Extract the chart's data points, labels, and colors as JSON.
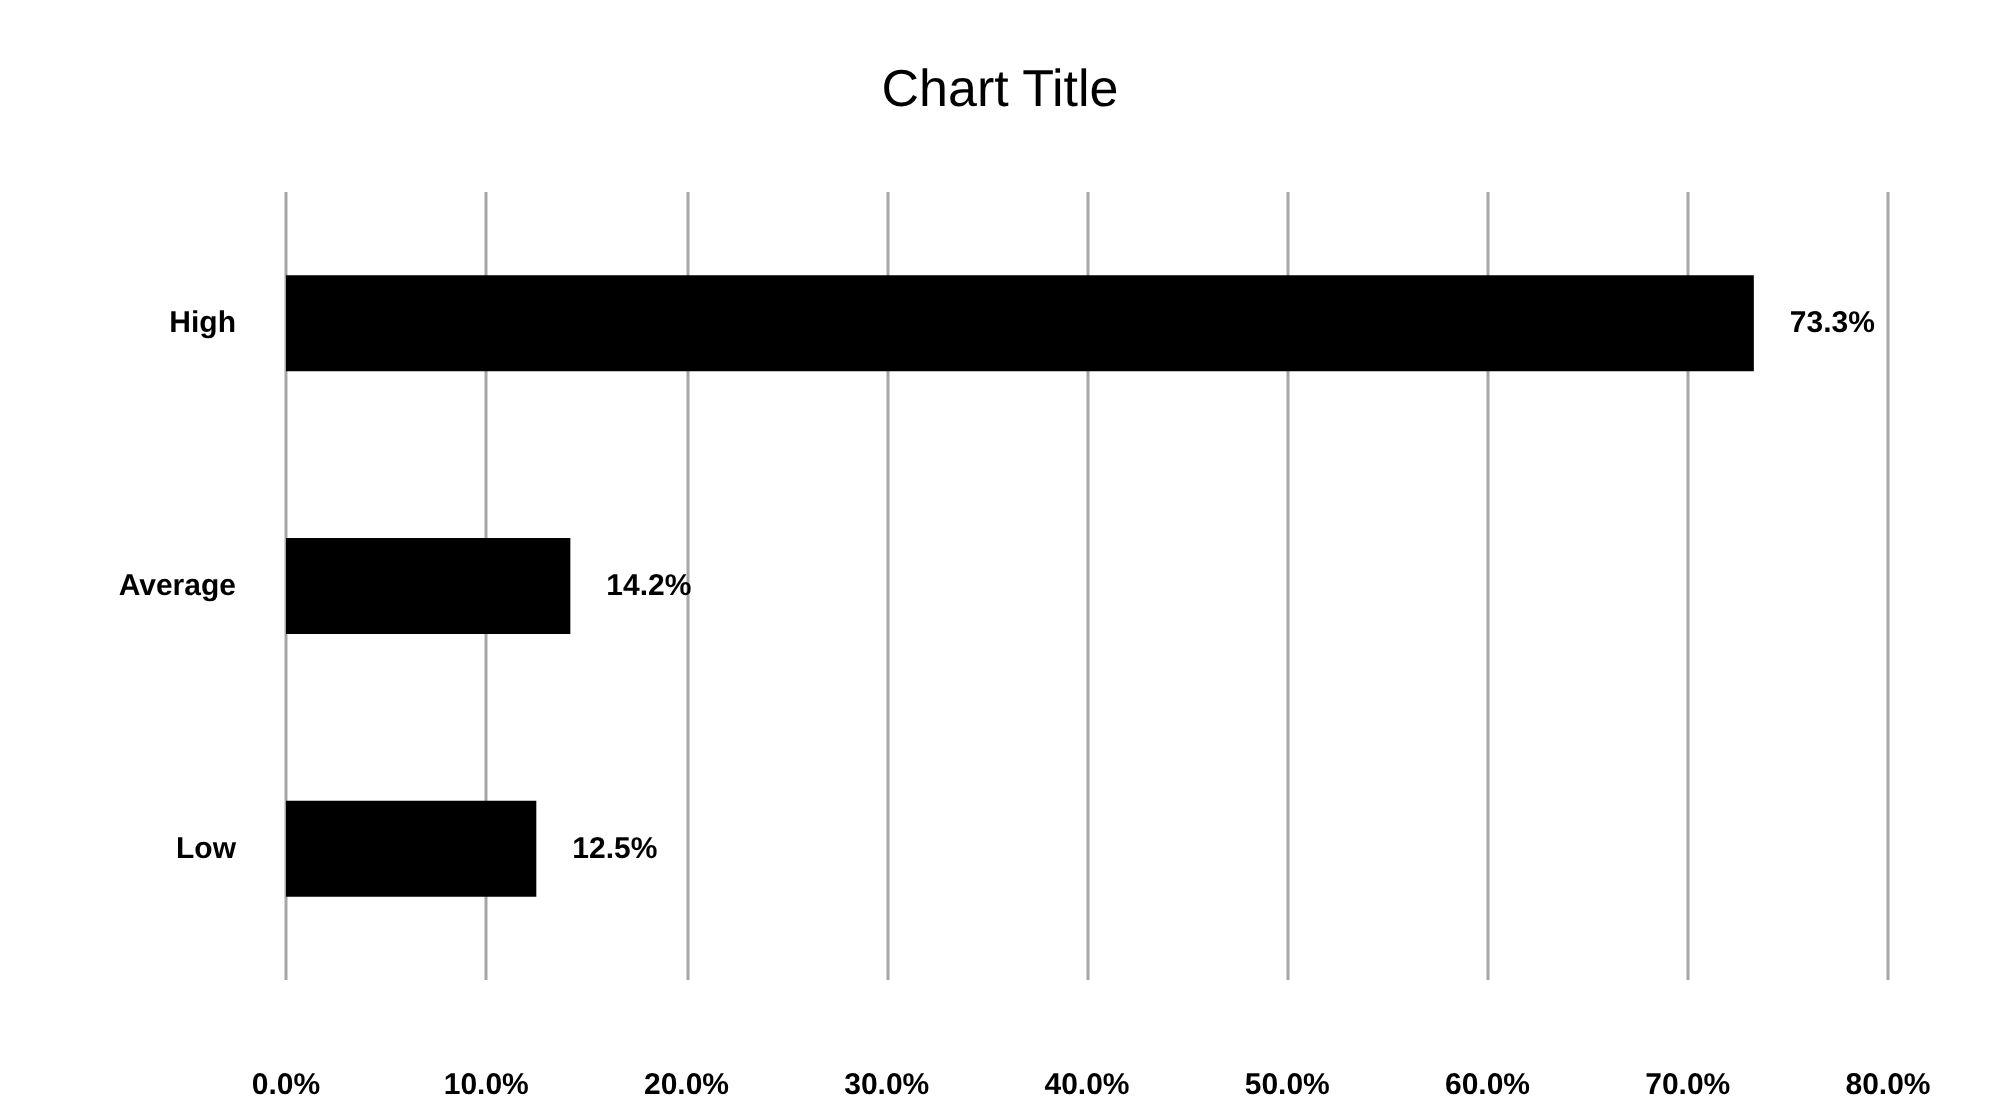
{
  "chart_data": {
    "type": "bar",
    "title": "Chart Title",
    "orientation": "horizontal",
    "categories": [
      "High",
      "Average",
      "Low"
    ],
    "values": [
      73.3,
      14.2,
      12.5
    ],
    "value_labels": [
      "73.3%",
      "14.2%",
      "12.5%"
    ],
    "color": "#000000",
    "xlim": [
      0,
      80
    ],
    "xticks": [
      {
        "value": 0,
        "label": "0.0%"
      },
      {
        "value": 10,
        "label": "10.0%"
      },
      {
        "value": 20,
        "label": "20.0%"
      },
      {
        "value": 30,
        "label": "30.0%"
      },
      {
        "value": 40,
        "label": "40.0%"
      },
      {
        "value": 50,
        "label": "50.0%"
      },
      {
        "value": 60,
        "label": "60.0%"
      },
      {
        "value": 70,
        "label": "70.0%"
      },
      {
        "value": 80,
        "label": "80.0%"
      }
    ],
    "grid": "x"
  }
}
